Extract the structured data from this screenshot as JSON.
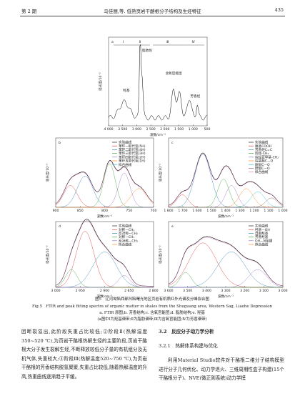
{
  "header": {
    "issue": "第 2 期",
    "running_title": "马佳丽,等. 低熟页岩干酪根分子结构及生烃特征",
    "page": "435"
  },
  "figure": {
    "panel_a": {
      "label": "a",
      "ylabel": "吸光度/10⁻²",
      "xlabel": "波数/cm⁻¹",
      "xticks": [
        "4 000",
        "3 500",
        "3 000",
        "2 500",
        "2 000",
        "1 500",
        "1 000",
        "500"
      ],
      "annotations": [
        "Ⅰ",
        "Ⅱ",
        "Ⅲ",
        "Ⅳ",
        "羟基",
        "脂肪烃",
        "含氧官能团",
        "芳香烃"
      ]
    },
    "panel_b": {
      "label": "b",
      "ylabel": "吸光度/10⁻²",
      "xlabel": "波数/cm⁻¹",
      "xticks": [
        "900",
        "850",
        "800",
        "750",
        "700"
      ],
      "legend": [
        "实验曲线",
        "苯环一取代氢(5H)",
        "苯环二取代氢(4H)",
        "苯环三取代氢(3H)",
        "苯环四取代氢(2H)",
        "苯环五取代氢(1H)",
        "拟合曲线"
      ]
    },
    "panel_c": {
      "label": "c",
      "ylabel": "吸光度/10⁻²",
      "xlabel": "波数/cm⁻¹",
      "xticks": [
        "1 800",
        "1 700",
        "1 600",
        "1 500",
        "1 400",
        "1 300",
        "1 200",
        "1 100",
        "1 000"
      ],
      "legend": [
        "实验曲线",
        "羧基COOH",
        "芳香烃C=C",
        "烷烃-CH₃",
        "烷烃亚甲基-CH₂",
        "烷基醚C—O",
        "酚醚C—O",
        "醇醚C—O",
        "拟合曲线"
      ]
    },
    "panel_d": {
      "label": "d",
      "ylabel": "吸光度/10⁻²",
      "xlabel": "波数/cm⁻¹",
      "xticks": [
        "3 000",
        "2 950",
        "2 900",
        "2 850",
        "2 800"
      ],
      "legend": [
        "实验曲线",
        "对称—CH₂",
        "反对称—CH₂",
        "对称—CH₃",
        "反对称—CH₃",
        "拟合曲线"
      ]
    },
    "panel_e": {
      "label": "e",
      "ylabel": "吸光度/10⁻²",
      "xlabel": "波数/cm⁻¹",
      "xticks": [
        "3 600",
        "3 500",
        "3 400",
        "3 300",
        "3 200",
        "3 100",
        "3 000"
      ],
      "legend": [
        "实验曲线",
        "羟基—OH",
        "自由羟基",
        "芳香羟基",
        "OH—N氢键",
        "拟合曲线"
      ]
    }
  },
  "caption": {
    "title_cn": "图5　辽河坳陷西部凹陷曙光地区页岩有机质红外光谱及分峰拟合图",
    "title_en": "Fig.5　FTIR and peak fitting spectra of organic matter in shales from the Shuguang area, Western Sag, Liaohe Depression",
    "subpanels": "a. FTIR 原图;b. 芳香结构;c. 含氧官能团;d. 脂肪结构;e. 羟基",
    "note": "(a图中Ⅰ为羟基谱带;Ⅱ为脂肪谱带;Ⅲ为含氧官能团;Ⅳ为芳香谱带)"
  },
  "body": {
    "left": "团断裂溢出,此阶段失重占比较低;②阶段Ⅱ(热解温度350~520 ℃),为页岩干酪根热解生烃的主要阶段,页岩干酪根大分子发生裂解生烃,不断释放较低分子量的有机组分及无机气体,失重较大;③阶段Ⅲ(热解温度520~750 ℃),为页岩干酪根的芳香结构脱氢聚聚,失重占比较低,随着热解温度的升高,热重曲线逐渐趋于平缓。",
    "section": "3.2　反应分子动力学分析",
    "subsection": "3.2.1　热解体系构建与优化",
    "right": "利用Material Studio软件对干酪根二维分子结构模型进行分子几何优化、动力学退火、三维周期性盒子构建(15个干酪根分子)、NVE(微正则系统)动力学模"
  }
}
